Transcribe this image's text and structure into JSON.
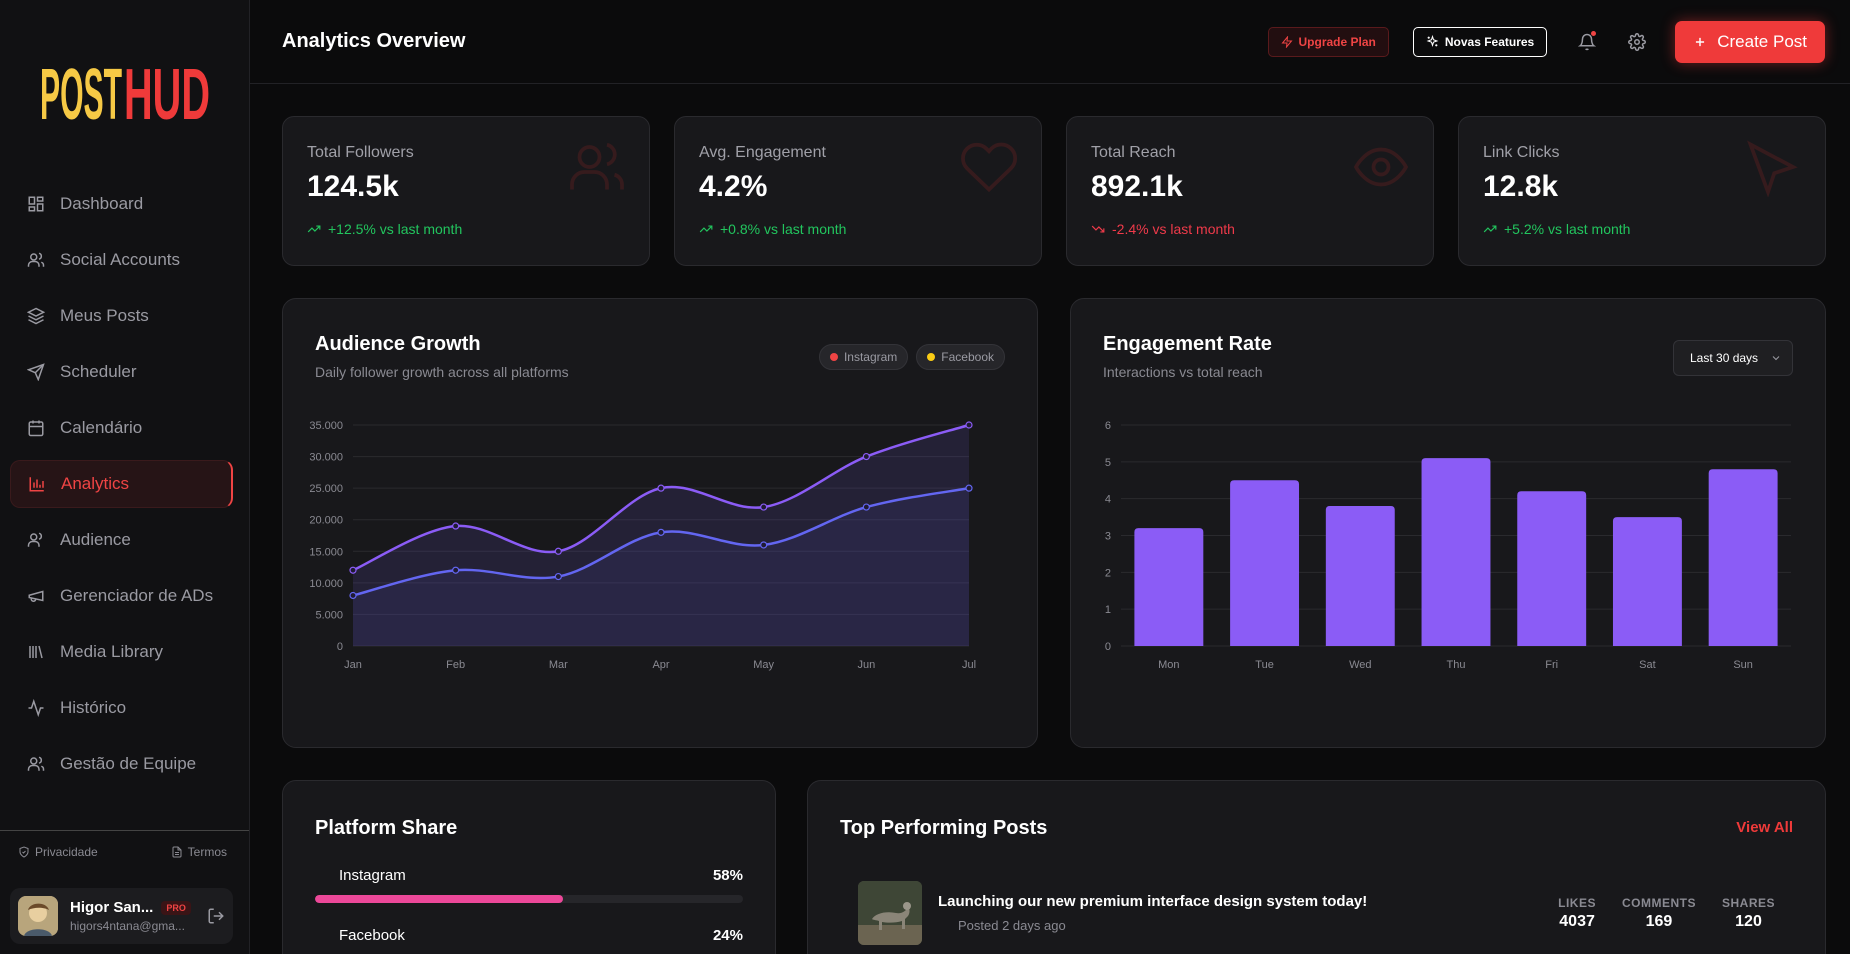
{
  "brand": {
    "name_part1": "POST",
    "name_part2": "HUD",
    "color1": "#f6c945",
    "color2": "#ef3a3a"
  },
  "sidebar": {
    "items": [
      {
        "label": "Dashboard",
        "icon": "dashboard-icon",
        "active": false
      },
      {
        "label": "Social Accounts",
        "icon": "users-icon",
        "active": false
      },
      {
        "label": "Meus Posts",
        "icon": "layers-icon",
        "active": false
      },
      {
        "label": "Scheduler",
        "icon": "send-icon",
        "active": false
      },
      {
        "label": "Calendário",
        "icon": "calendar-icon",
        "active": false
      },
      {
        "label": "Analytics",
        "icon": "bar-chart-icon",
        "active": true
      },
      {
        "label": "Audience",
        "icon": "users-icon",
        "active": false
      },
      {
        "label": "Gerenciador de ADs",
        "icon": "megaphone-icon",
        "active": false
      },
      {
        "label": "Media Library",
        "icon": "library-icon",
        "active": false
      },
      {
        "label": "Histórico",
        "icon": "activity-icon",
        "active": false
      },
      {
        "label": "Gestão de Equipe",
        "icon": "team-icon",
        "active": false
      }
    ],
    "footer": {
      "privacy": "Privacidade",
      "terms": "Termos"
    },
    "user": {
      "name": "Higor San...",
      "badge": "PRO",
      "email": "higors4ntana@gma..."
    }
  },
  "header": {
    "title": "Analytics Overview",
    "upgrade_label": "Upgrade Plan",
    "features_label": "Novas Features",
    "create_label": "Create Post"
  },
  "stats": [
    {
      "label": "Total Followers",
      "value": "124.5k",
      "delta": "+12.5% vs last month",
      "trend": "up",
      "icon": "users-icon"
    },
    {
      "label": "Avg. Engagement",
      "value": "4.2%",
      "delta": "+0.8% vs last month",
      "trend": "up",
      "icon": "heart-icon"
    },
    {
      "label": "Total Reach",
      "value": "892.1k",
      "delta": "-2.4% vs last month",
      "trend": "down",
      "icon": "eye-icon"
    },
    {
      "label": "Link Clicks",
      "value": "12.8k",
      "delta": "+5.2% vs last month",
      "trend": "up",
      "icon": "cursor-icon"
    }
  ],
  "audience": {
    "title": "Audience Growth",
    "subtitle": "Daily follower growth across all platforms",
    "legend": [
      {
        "name": "Instagram",
        "color": "#ef4444"
      },
      {
        "name": "Facebook",
        "color": "#facc15"
      }
    ]
  },
  "engagement": {
    "title": "Engagement Rate",
    "subtitle": "Interactions vs total reach",
    "range_label": "Last 30 days"
  },
  "chart_data": [
    {
      "type": "area",
      "categories": [
        "Jan",
        "Feb",
        "Mar",
        "Apr",
        "May",
        "Jun",
        "Jul"
      ],
      "series": [
        {
          "values": [
            12000,
            19000,
            15000,
            25000,
            22000,
            30000,
            35000
          ],
          "color": "#8b5cf6"
        },
        {
          "values": [
            8000,
            12000,
            11000,
            18000,
            16000,
            22000,
            25000
          ],
          "color": "#6366f1"
        }
      ],
      "yticks": [
        "0",
        "5.000",
        "10.000",
        "15.000",
        "20.000",
        "25.000",
        "30.000",
        "35.000"
      ],
      "ylim": [
        0,
        35000
      ],
      "grid": true
    },
    {
      "type": "bar",
      "categories": [
        "Mon",
        "Tue",
        "Wed",
        "Thu",
        "Fri",
        "Sat",
        "Sun"
      ],
      "values": [
        3.2,
        4.5,
        3.8,
        5.1,
        4.2,
        3.5,
        4.8
      ],
      "color": "#8b5cf6",
      "yticks": [
        "0",
        "1",
        "2",
        "3",
        "4",
        "5",
        "6"
      ],
      "ylim": [
        0,
        6
      ],
      "grid": true
    }
  ],
  "platform_share": {
    "title": "Platform Share",
    "items": [
      {
        "name": "Instagram",
        "pct_label": "58%",
        "pct": 58,
        "color": "#ec4899"
      },
      {
        "name": "Facebook",
        "pct_label": "24%",
        "pct": 24,
        "color": "#3b82f6"
      }
    ]
  },
  "top_posts": {
    "title": "Top Performing Posts",
    "view_all": "View All",
    "rows": [
      {
        "title": "Launching our new premium interface design system today!",
        "date": "Posted 2 days ago",
        "likes_label": "LIKES",
        "likes": "4037",
        "comments_label": "COMMENTS",
        "comments": "169",
        "shares_label": "SHARES",
        "shares": "120"
      }
    ]
  }
}
